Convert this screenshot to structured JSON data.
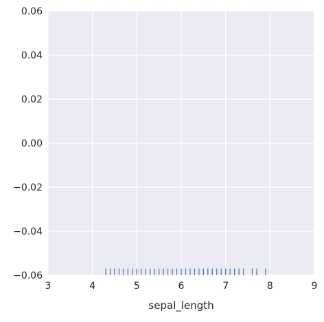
{
  "chart_data": {
    "type": "rug",
    "xlabel": "sepal_length",
    "ylabel": "",
    "title": "",
    "xlim": [
      3,
      9
    ],
    "ylim": [
      -0.06,
      0.06
    ],
    "xticks": [
      3,
      4,
      5,
      6,
      7,
      8,
      9
    ],
    "xtick_labels": [
      "3",
      "4",
      "5",
      "6",
      "7",
      "8",
      "9"
    ],
    "yticks": [
      0.06,
      0.04,
      0.02,
      0.0,
      -0.02,
      -0.04,
      -0.06
    ],
    "ytick_labels": [
      "0.06",
      "0.04",
      "0.02",
      "0.00",
      "−0.02",
      "−0.04",
      "−0.06"
    ],
    "grid": true,
    "values": [
      4.3,
      4.4,
      4.5,
      4.6,
      4.7,
      4.8,
      4.9,
      5.0,
      5.1,
      5.2,
      5.3,
      5.4,
      5.5,
      5.6,
      5.7,
      5.8,
      5.9,
      6.0,
      6.1,
      6.2,
      6.3,
      6.4,
      6.5,
      6.6,
      6.7,
      6.8,
      6.9,
      7.0,
      7.1,
      7.2,
      7.3,
      7.4,
      7.6,
      7.7,
      7.9
    ],
    "colors": {
      "rug": "#4c72b0",
      "background": "#eaeaf2",
      "grid": "#ffffff"
    }
  }
}
